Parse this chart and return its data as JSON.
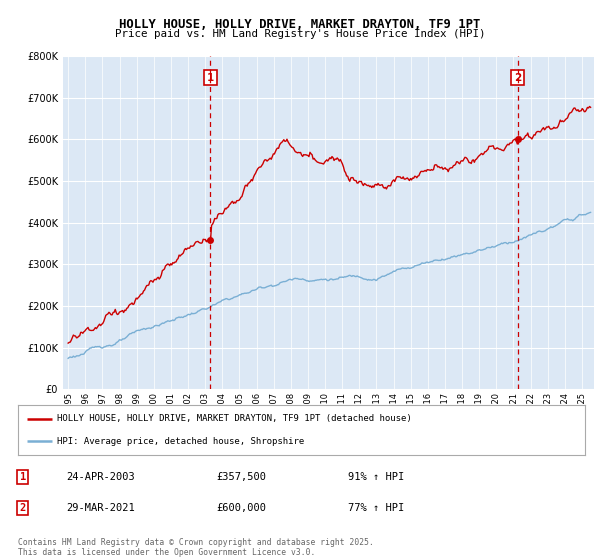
{
  "title_line1": "HOLLY HOUSE, HOLLY DRIVE, MARKET DRAYTON, TF9 1PT",
  "title_line2": "Price paid vs. HM Land Registry's House Price Index (HPI)",
  "background_color": "#ffffff",
  "plot_bg_color": "#dce8f5",
  "grid_color": "#ffffff",
  "red_line_color": "#cc0000",
  "blue_line_color": "#7aafd4",
  "marker1_x": 2003.31,
  "marker1_y": 357500,
  "marker1_label": "1",
  "marker2_x": 2021.24,
  "marker2_y": 600000,
  "marker2_label": "2",
  "legend_line1": "HOLLY HOUSE, HOLLY DRIVE, MARKET DRAYTON, TF9 1PT (detached house)",
  "legend_line2": "HPI: Average price, detached house, Shropshire",
  "table_row1": [
    "1",
    "24-APR-2003",
    "£357,500",
    "91% ↑ HPI"
  ],
  "table_row2": [
    "2",
    "29-MAR-2021",
    "£600,000",
    "77% ↑ HPI"
  ],
  "footer": "Contains HM Land Registry data © Crown copyright and database right 2025.\nThis data is licensed under the Open Government Licence v3.0.",
  "ylim": [
    0,
    800000
  ],
  "xlim_start": 1994.7,
  "xlim_end": 2025.7
}
